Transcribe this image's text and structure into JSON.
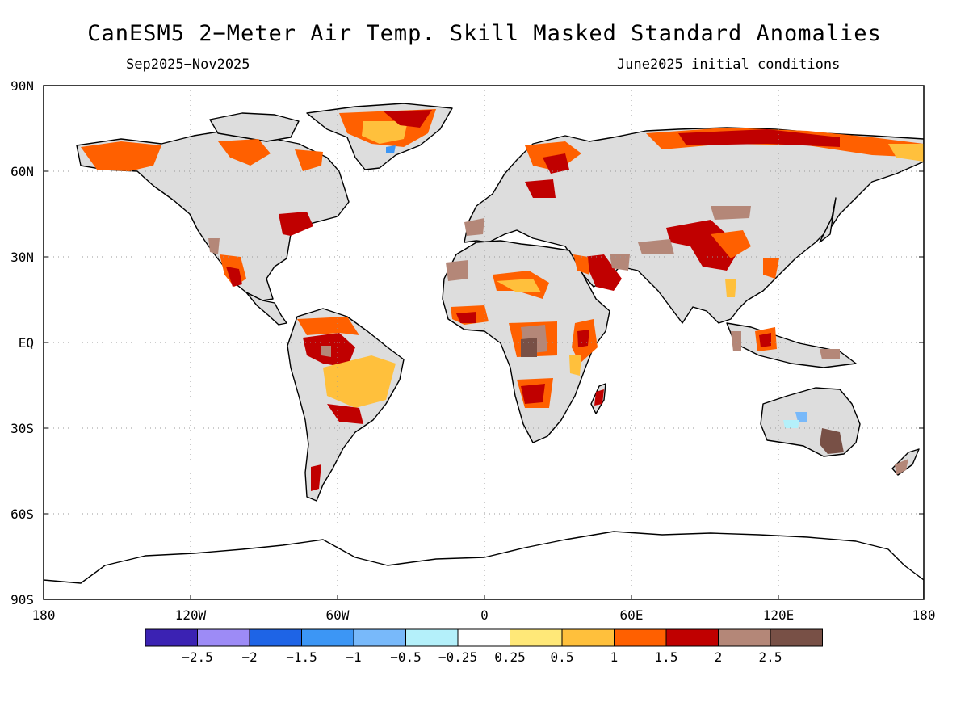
{
  "title": "CanESM5 2−Meter Air Temp. Skill Masked Standard Anomalies",
  "subtitle_left": "Sep2025−Nov2025",
  "subtitle_right": "June2025 initial conditions",
  "lat_labels": [
    "90N",
    "60N",
    "30N",
    "EQ",
    "30S",
    "60S",
    "90S"
  ],
  "lon_labels": [
    "180",
    "120W",
    "60W",
    "0",
    "60E",
    "120E",
    "180"
  ],
  "colorbar": {
    "colors": [
      "#3b22b3",
      "#9d8bf6",
      "#1e64e6",
      "#3c96f5",
      "#78b9fa",
      "#b4f0fa",
      "#ffffff",
      "#ffe878",
      "#ffc03c",
      "#ff6000",
      "#c00000",
      "#b48778",
      "#785046"
    ],
    "tick_labels": [
      "−2.5",
      "−2",
      "−1.5",
      "−1",
      "−0.5",
      "−0.25",
      "0.25",
      "0.5",
      "1",
      "1.5",
      "2",
      "2.5"
    ]
  },
  "colors": {
    "land_masked": "#dddddd",
    "ocean": "#ffffff",
    "coast": "#000000",
    "grid": "#999999"
  }
}
